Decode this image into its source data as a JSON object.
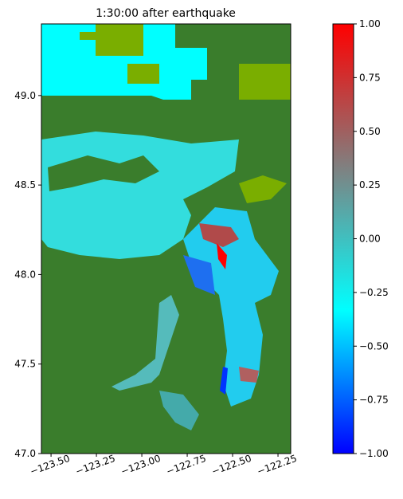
{
  "chart_data": {
    "type": "heatmap",
    "title": "1:30:00 after earthquake",
    "xlim": [
      -123.553,
      -122.18
    ],
    "ylim": [
      47.0,
      49.4
    ],
    "xticks": [
      {
        "value": -123.5,
        "label": "−123.50"
      },
      {
        "value": -123.25,
        "label": "−123.25"
      },
      {
        "value": -123.0,
        "label": "−123.00"
      },
      {
        "value": -122.75,
        "label": "−122.75"
      },
      {
        "value": -122.5,
        "label": "−122.50"
      },
      {
        "value": -122.25,
        "label": "−122.25"
      }
    ],
    "yticks": [
      {
        "value": 47.0,
        "label": "47.0"
      },
      {
        "value": 47.5,
        "label": "47.5"
      },
      {
        "value": 48.0,
        "label": "48.0"
      },
      {
        "value": 48.5,
        "label": "48.5"
      },
      {
        "value": 49.0,
        "label": "49.0"
      }
    ],
    "colorbar": {
      "vlim": [
        -1.0,
        1.0
      ],
      "colors": [
        "#0000ff",
        "#00ffff",
        "#808080",
        "#ff0000"
      ],
      "ticks": [
        {
          "value": -1.0,
          "label": "−1.00"
        },
        {
          "value": -0.75,
          "label": "−0.75"
        },
        {
          "value": -0.5,
          "label": "−0.50"
        },
        {
          "value": -0.25,
          "label": "−0.25"
        },
        {
          "value": 0.0,
          "label": "0.00"
        },
        {
          "value": 0.25,
          "label": "0.25"
        },
        {
          "value": 0.5,
          "label": "0.50"
        },
        {
          "value": 0.75,
          "label": "0.75"
        },
        {
          "value": 1.0,
          "label": "1.00"
        }
      ]
    }
  }
}
